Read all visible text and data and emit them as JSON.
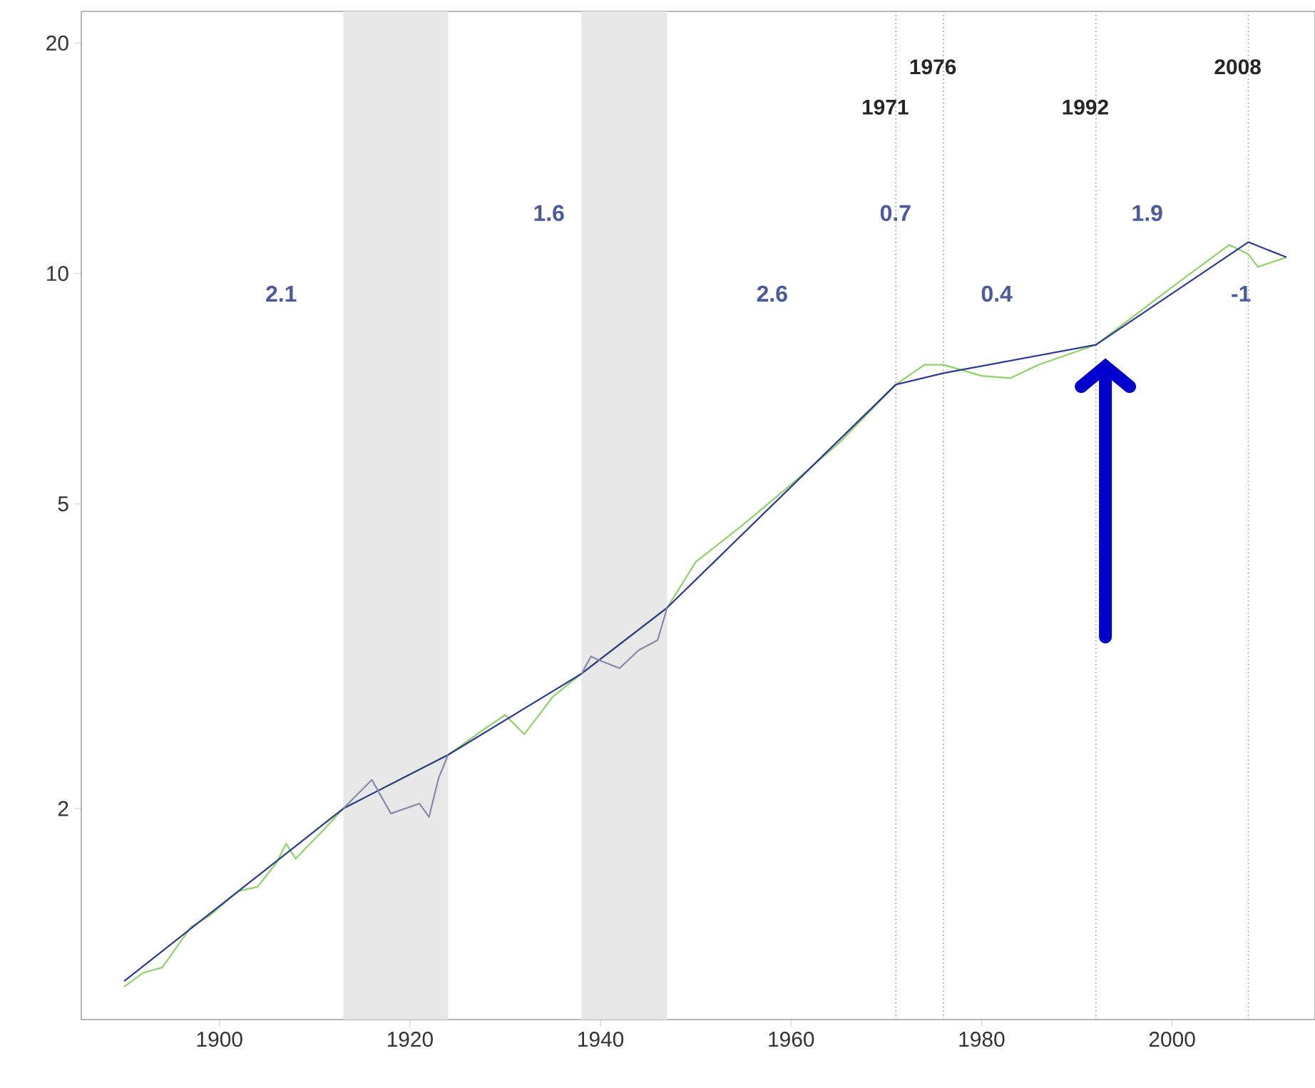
{
  "chart_data": {
    "type": "line",
    "log": "y",
    "xlim": [
      1885.5,
      2015
    ],
    "ylim": [
      1.06,
      22
    ],
    "xticks": [
      1900,
      1920,
      1940,
      1960,
      1980,
      2000
    ],
    "yticks": [
      2,
      5,
      10,
      20
    ],
    "series": [
      {
        "color": "#8fd16a",
        "x": [
          1890,
          1892,
          1894,
          1897,
          1899,
          1902,
          1904,
          1906,
          1907,
          1908,
          1911,
          1913,
          1924,
          1928,
          1930,
          1932,
          1935,
          1938,
          1947,
          1950,
          1955,
          1960,
          1965,
          1971,
          1974,
          1976,
          1980,
          1983,
          1986,
          1992,
          2000,
          2006,
          2008,
          2009,
          2012
        ],
        "values": [
          1.17,
          1.22,
          1.24,
          1.4,
          1.45,
          1.56,
          1.58,
          1.7,
          1.8,
          1.72,
          1.88,
          2.0,
          2.35,
          2.55,
          2.65,
          2.5,
          2.8,
          3.0,
          3.66,
          4.2,
          4.7,
          5.3,
          6.0,
          7.16,
          7.6,
          7.6,
          7.35,
          7.3,
          7.6,
          8.07,
          9.6,
          10.9,
          10.6,
          10.2,
          10.5
        ]
      },
      {
        "color": "#2b3a8c",
        "x": [
          1890,
          1913,
          1924,
          1938,
          1947,
          1971,
          1976,
          1992,
          2008,
          2012
        ],
        "values": [
          1.19,
          2.0,
          2.35,
          3.0,
          3.66,
          7.16,
          7.41,
          8.07,
          10.99,
          10.5
        ]
      },
      {
        "color": "#8888aa",
        "x": [
          1913,
          1916,
          1918,
          1921,
          1922,
          1923,
          1924,
          1930,
          1938,
          1939,
          1940,
          1942,
          1944,
          1946,
          1947
        ],
        "values": [
          2.0,
          2.18,
          1.97,
          2.03,
          1.95,
          2.19,
          2.35,
          null,
          3.0,
          3.16,
          3.12,
          3.05,
          3.22,
          3.32,
          3.66
        ]
      }
    ],
    "bands": [
      {
        "axis": "x",
        "from": 1913,
        "to": 1924,
        "color": "#e8e8e8"
      },
      {
        "axis": "x",
        "from": 1938,
        "to": 1947,
        "color": "#e8e8e8"
      }
    ],
    "ref_lines": [
      {
        "axis": "x",
        "value": 1971,
        "label": "1971",
        "color": "#999999",
        "line_style": "dotted"
      },
      {
        "axis": "x",
        "value": 1976,
        "label": "1976",
        "color": "#999999",
        "line_style": "dotted"
      },
      {
        "axis": "x",
        "value": 1992,
        "label": "1992",
        "color": "#999999",
        "line_style": "dotted"
      },
      {
        "axis": "x",
        "value": 2008,
        "label": "2008",
        "color": "#999999",
        "line_style": "dotted"
      }
    ],
    "annotations": [
      "2.1",
      "1.6",
      "2.6",
      "0.7",
      "0.4",
      "1.9",
      "-1"
    ]
  }
}
